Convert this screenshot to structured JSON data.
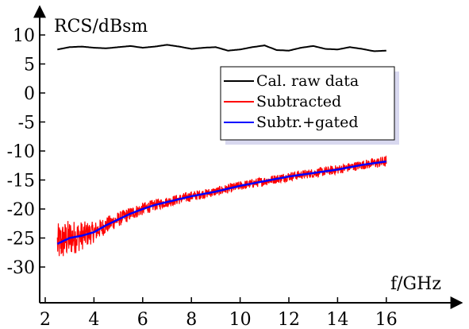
{
  "chart_data": {
    "type": "line",
    "xlabel": "f/GHz",
    "ylabel": "RCS/dBsm",
    "xlim": [
      2,
      17.5
    ],
    "ylim": [
      -33,
      12
    ],
    "x_ticks": [
      2,
      4,
      6,
      8,
      10,
      12,
      14,
      16
    ],
    "y_ticks": [
      10,
      5,
      0,
      -5,
      -10,
      -15,
      -20,
      -25,
      -30
    ],
    "x_tick_labels": [
      "2",
      "4",
      "6",
      "8",
      "10",
      "12",
      "14",
      "16"
    ],
    "y_tick_labels": [
      "10",
      "5",
      "0",
      "-5",
      "-10",
      "-15",
      "-20",
      "-25",
      "-30"
    ],
    "grid": false,
    "legend_position": "top-right",
    "series": [
      {
        "name": "Cal. raw data",
        "color": "#000000",
        "x": [
          2.5,
          3.0,
          3.5,
          4.0,
          4.5,
          5.0,
          5.5,
          6.0,
          6.5,
          7.0,
          7.5,
          8.0,
          8.5,
          9.0,
          9.5,
          10.0,
          10.5,
          11.0,
          11.5,
          12.0,
          12.5,
          13.0,
          13.5,
          14.0,
          14.5,
          15.0,
          15.5,
          16.0
        ],
        "y": [
          7.5,
          7.9,
          8.0,
          7.8,
          7.7,
          7.9,
          8.1,
          7.8,
          8.0,
          8.3,
          8.0,
          7.6,
          7.8,
          7.9,
          7.3,
          7.5,
          7.9,
          8.2,
          7.4,
          7.3,
          7.8,
          8.1,
          7.6,
          7.5,
          7.9,
          7.6,
          7.2,
          7.3
        ]
      },
      {
        "name": "Subtracted",
        "color": "#ff0000",
        "x": [
          2.5,
          3.0,
          3.5,
          4.0,
          4.5,
          5.0,
          5.5,
          6.0,
          6.5,
          7.0,
          7.5,
          8.0,
          8.5,
          9.0,
          9.5,
          10.0,
          10.5,
          11.0,
          11.5,
          12.0,
          12.5,
          13.0,
          13.5,
          14.0,
          14.5,
          15.0,
          15.5,
          16.0
        ],
        "y": [
          -26.0,
          -25.0,
          -24.6,
          -24.0,
          -22.8,
          -21.8,
          -20.8,
          -20.0,
          -19.3,
          -18.8,
          -18.3,
          -17.8,
          -17.4,
          -17.0,
          -16.5,
          -16.0,
          -15.6,
          -15.2,
          -14.8,
          -14.4,
          -14.1,
          -13.8,
          -13.5,
          -13.2,
          -12.8,
          -12.4,
          -12.1,
          -11.8
        ],
        "noise_amplitude_db": [
          3.5,
          3.2,
          2.5,
          1.8,
          1.5,
          1.3,
          1.2,
          1.1,
          1.0,
          0.9,
          0.9,
          0.9,
          0.8,
          0.8,
          0.8,
          0.8,
          0.8,
          0.8,
          0.8,
          0.8,
          0.8,
          0.8,
          0.8,
          0.8,
          0.8,
          0.8,
          0.9,
          1.0
        ]
      },
      {
        "name": "Subtr.+gated",
        "color": "#0000ff",
        "x": [
          2.5,
          3.0,
          3.5,
          4.0,
          4.5,
          5.0,
          5.5,
          6.0,
          6.5,
          7.0,
          7.5,
          8.0,
          8.5,
          9.0,
          9.5,
          10.0,
          10.5,
          11.0,
          11.5,
          12.0,
          12.5,
          13.0,
          13.5,
          14.0,
          14.5,
          15.0,
          15.5,
          16.0
        ],
        "y": [
          -26.0,
          -25.0,
          -24.6,
          -24.0,
          -22.8,
          -21.8,
          -20.8,
          -20.0,
          -19.3,
          -18.8,
          -18.3,
          -17.8,
          -17.4,
          -17.0,
          -16.5,
          -16.0,
          -15.6,
          -15.2,
          -14.8,
          -14.4,
          -14.1,
          -13.8,
          -13.5,
          -13.2,
          -12.8,
          -12.4,
          -12.1,
          -11.8
        ]
      }
    ]
  }
}
